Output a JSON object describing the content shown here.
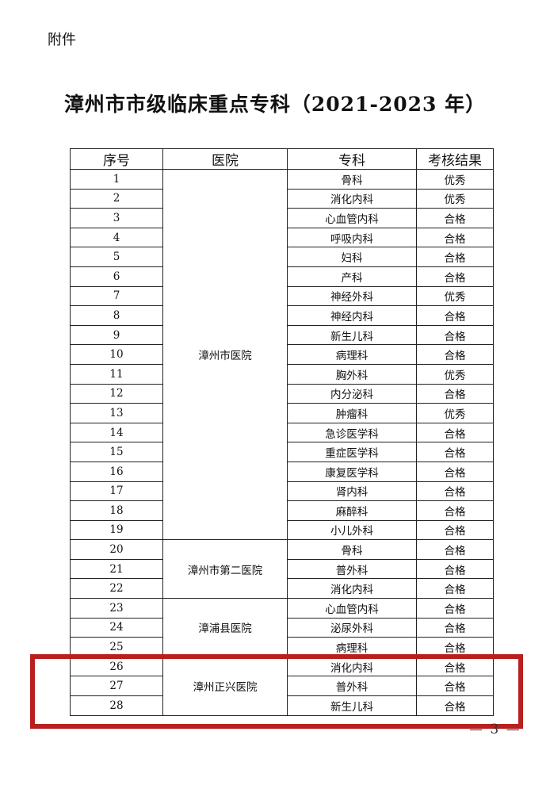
{
  "attachment_label": "附件",
  "title": "漳州市市级临床重点专科（2021-2023 年）",
  "columns": [
    "序号",
    "医院",
    "专科",
    "考核结果"
  ],
  "hospitals": [
    {
      "name": "漳州市医院",
      "rows": [
        {
          "no": "1",
          "dept": "骨科",
          "result": "优秀"
        },
        {
          "no": "2",
          "dept": "消化内科",
          "result": "优秀"
        },
        {
          "no": "3",
          "dept": "心血管内科",
          "result": "合格"
        },
        {
          "no": "4",
          "dept": "呼吸内科",
          "result": "合格"
        },
        {
          "no": "5",
          "dept": "妇科",
          "result": "合格"
        },
        {
          "no": "6",
          "dept": "产科",
          "result": "合格"
        },
        {
          "no": "7",
          "dept": "神经外科",
          "result": "优秀"
        },
        {
          "no": "8",
          "dept": "神经内科",
          "result": "合格"
        },
        {
          "no": "9",
          "dept": "新生儿科",
          "result": "合格"
        },
        {
          "no": "10",
          "dept": "病理科",
          "result": "合格"
        },
        {
          "no": "11",
          "dept": "胸外科",
          "result": "优秀"
        },
        {
          "no": "12",
          "dept": "内分泌科",
          "result": "合格"
        },
        {
          "no": "13",
          "dept": "肿瘤科",
          "result": "优秀"
        },
        {
          "no": "14",
          "dept": "急诊医学科",
          "result": "合格"
        },
        {
          "no": "15",
          "dept": "重症医学科",
          "result": "合格"
        },
        {
          "no": "16",
          "dept": "康复医学科",
          "result": "合格"
        },
        {
          "no": "17",
          "dept": "肾内科",
          "result": "合格"
        },
        {
          "no": "18",
          "dept": "麻醉科",
          "result": "合格"
        },
        {
          "no": "19",
          "dept": "小儿外科",
          "result": "合格"
        }
      ]
    },
    {
      "name": "漳州市第二医院",
      "rows": [
        {
          "no": "20",
          "dept": "骨科",
          "result": "合格"
        },
        {
          "no": "21",
          "dept": "普外科",
          "result": "合格"
        },
        {
          "no": "22",
          "dept": "消化内科",
          "result": "合格"
        }
      ]
    },
    {
      "name": "漳浦县医院",
      "rows": [
        {
          "no": "23",
          "dept": "心血管内科",
          "result": "合格"
        },
        {
          "no": "24",
          "dept": "泌尿外科",
          "result": "合格"
        },
        {
          "no": "25",
          "dept": "病理科",
          "result": "合格"
        }
      ]
    },
    {
      "name": "漳州正兴医院",
      "highlighted": true,
      "rows": [
        {
          "no": "26",
          "dept": "消化内科",
          "result": "合格"
        },
        {
          "no": "27",
          "dept": "普外科",
          "result": "合格"
        },
        {
          "no": "28",
          "dept": "新生儿科",
          "result": "合格"
        }
      ]
    }
  ],
  "highlight_color": "#b8201f",
  "page_number": "— 3 —"
}
